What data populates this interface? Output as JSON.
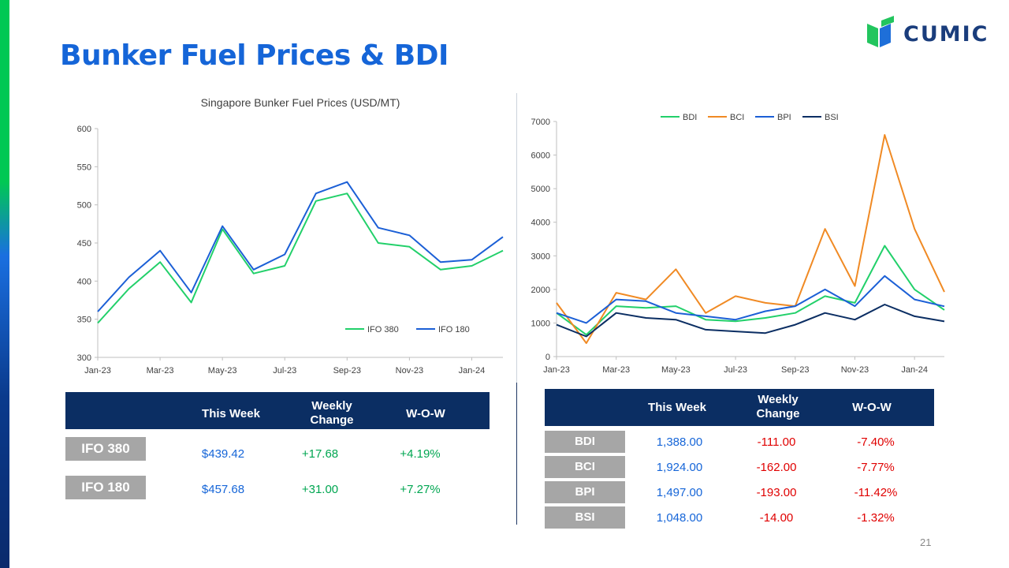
{
  "header": {
    "title": "Bunker Fuel Prices & BDI",
    "logo_text": "CUMIC",
    "page_number": "21"
  },
  "colors": {
    "title": "#1565d8",
    "table_header": "#0b2e63",
    "row_label_bg": "#a6a6a6",
    "positive": "#00a651",
    "negative": "#e00000",
    "value_blue": "#1565d8"
  },
  "chart_data": [
    {
      "type": "line",
      "title": "Singapore Bunker Fuel Prices (USD/MT)",
      "ylim": [
        300,
        600
      ],
      "yticks": [
        "300",
        "350",
        "400",
        "450",
        "500",
        "550",
        "600"
      ],
      "xticks": [
        "Jan-23",
        "Mar-23",
        "May-23",
        "Jul-23",
        "Sep-23",
        "Nov-23",
        "Jan-24"
      ],
      "legend_position": "bottom-right",
      "x": [
        "Jan-23",
        "Feb-23",
        "Mar-23",
        "Apr-23",
        "May-23",
        "Jun-23",
        "Jul-23",
        "Aug-23",
        "Sep-23",
        "Oct-23",
        "Nov-23",
        "Dec-23",
        "Jan-24",
        "Feb-24"
      ],
      "series": [
        {
          "name": "IFO 380",
          "color": "#22d06a",
          "values": [
            345,
            390,
            425,
            372,
            468,
            410,
            420,
            505,
            515,
            450,
            445,
            415,
            420,
            440
          ]
        },
        {
          "name": "IFO 180",
          "color": "#1b5fd6",
          "values": [
            360,
            405,
            440,
            385,
            472,
            415,
            435,
            515,
            530,
            470,
            460,
            425,
            428,
            458
          ]
        }
      ]
    },
    {
      "type": "line",
      "title": "",
      "ylim": [
        0,
        7000
      ],
      "yticks": [
        "0",
        "1000",
        "2000",
        "3000",
        "4000",
        "5000",
        "6000",
        "7000"
      ],
      "xticks": [
        "Jan-23",
        "Mar-23",
        "May-23",
        "Jul-23",
        "Sep-23",
        "Nov-23",
        "Jan-24"
      ],
      "legend_position": "top",
      "x": [
        "Jan-23",
        "Feb-23",
        "Mar-23",
        "Apr-23",
        "May-23",
        "Jun-23",
        "Jul-23",
        "Aug-23",
        "Sep-23",
        "Oct-23",
        "Nov-23",
        "Dec-23",
        "Jan-24",
        "Feb-24"
      ],
      "series": [
        {
          "name": "BDI",
          "color": "#22d06a",
          "values": [
            1300,
            650,
            1500,
            1450,
            1500,
            1100,
            1050,
            1150,
            1300,
            1800,
            1600,
            3300,
            2000,
            1388
          ]
        },
        {
          "name": "BCI",
          "color": "#f08a24",
          "values": [
            1600,
            400,
            1900,
            1700,
            2600,
            1300,
            1800,
            1600,
            1500,
            3800,
            2100,
            6600,
            3800,
            1924
          ]
        },
        {
          "name": "BPI",
          "color": "#1b5fd6",
          "values": [
            1300,
            1000,
            1700,
            1650,
            1300,
            1200,
            1100,
            1350,
            1500,
            2000,
            1500,
            2400,
            1700,
            1497
          ]
        },
        {
          "name": "BSI",
          "color": "#0b2e63",
          "values": [
            950,
            600,
            1300,
            1150,
            1100,
            800,
            750,
            700,
            950,
            1300,
            1100,
            1550,
            1200,
            1048
          ]
        }
      ]
    }
  ],
  "fuel_table": {
    "headers": [
      "This Week",
      "Weekly Change",
      "W-O-W"
    ],
    "rows": [
      {
        "label": "IFO 380",
        "this_week": "$439.42",
        "change": "+17.68",
        "wow": "+4.19%"
      },
      {
        "label": "IFO 180",
        "this_week": "$457.68",
        "change": "+31.00",
        "wow": "+7.27%"
      }
    ]
  },
  "bdi_table": {
    "headers": [
      "This Week",
      "Weekly Change",
      "W-O-W"
    ],
    "rows": [
      {
        "label": "BDI",
        "this_week": "1,388.00",
        "change": "-111.00",
        "wow": "-7.40%"
      },
      {
        "label": "BCI",
        "this_week": "1,924.00",
        "change": "-162.00",
        "wow": "-7.77%"
      },
      {
        "label": "BPI",
        "this_week": "1,497.00",
        "change": "-193.00",
        "wow": "-11.42%"
      },
      {
        "label": "BSI",
        "this_week": "1,048.00",
        "change": "-14.00",
        "wow": "-1.32%"
      }
    ]
  }
}
